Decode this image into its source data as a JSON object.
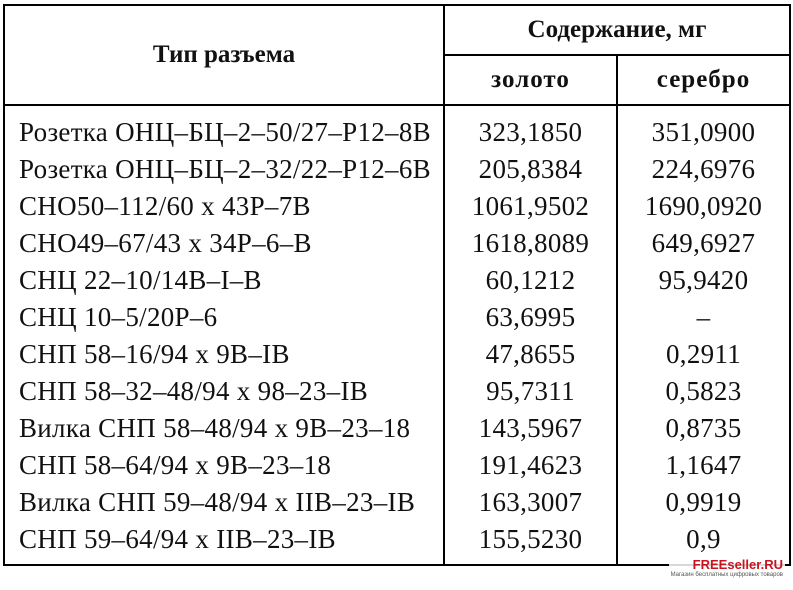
{
  "header": {
    "type_label": "Тип разъема",
    "content_label": "Содержание, мг",
    "gold_label": "золото",
    "silver_label": "серебро"
  },
  "rows": [
    {
      "name": "Розетка ОНЦ–БЦ–2–50/27–Р12–8В",
      "gold": "323,1850",
      "silver": "351,0900"
    },
    {
      "name": "Розетка ОНЦ–БЦ–2–32/22–Р12–6В",
      "gold": "205,8384",
      "silver": "224,6976"
    },
    {
      "name": "СНО50–112/60 х 43Р–7В",
      "gold": "1061,9502",
      "silver": "1690,0920"
    },
    {
      "name": "СНО49–67/43 х 34Р–6–В",
      "gold": "1618,8089",
      "silver": "649,6927"
    },
    {
      "name": "СНЦ 22–10/14В–I–В",
      "gold": "60,1212",
      "silver": "95,9420"
    },
    {
      "name": "СНЦ 10–5/20Р–6",
      "gold": "63,6995",
      "silver": "–"
    },
    {
      "name": "СНП 58–16/94 х 9В–IВ",
      "gold": "47,8655",
      "silver": "0,2911"
    },
    {
      "name": "СНП 58–32–48/94 х 98–23–IВ",
      "gold": "95,7311",
      "silver": "0,5823"
    },
    {
      "name": "Вилка СНП 58–48/94 х 9В–23–18",
      "gold": "143,5967",
      "silver": "0,8735"
    },
    {
      "name": "СНП 58–64/94 х 9В–23–18",
      "gold": "191,4623",
      "silver": "1,1647"
    },
    {
      "name": "Вилка СНП 59–48/94 х IIВ–23–IВ",
      "gold": "163,3007",
      "silver": "0,9919"
    },
    {
      "name": "СНП 59–64/94 х IIВ–23–IВ",
      "gold": "155,5230",
      "silver": "0,9"
    }
  ],
  "watermark": {
    "title": "FREEseller.RU",
    "subtitle": "Магазин бесплатных цифровых товаров"
  }
}
